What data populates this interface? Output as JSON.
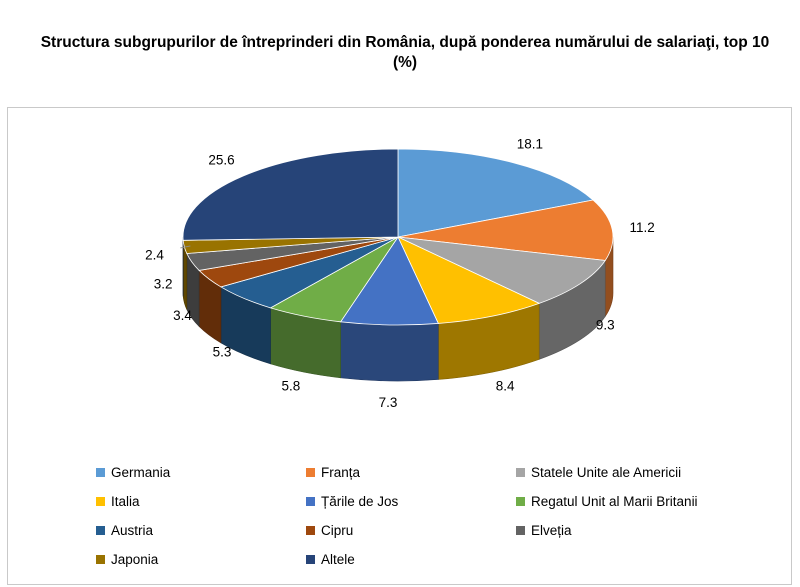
{
  "title_lines": [
    "Structura subgrupurilor de întreprinderi din România, după ponderea numărului de salariaţi, top 10",
    "(%)"
  ],
  "chart_data": {
    "type": "pie",
    "style": "3d",
    "title": "Structura subgrupurilor de întreprinderi din România, după ponderea numărului de salariaţi, top 10 (%)",
    "legend_position": "bottom",
    "categories": [
      "Germania",
      "Franța",
      "Statele Unite ale Americii",
      "Italia",
      "Țările de Jos",
      "Regatul Unit al Marii Britanii",
      "Austria",
      "Cipru",
      "Elveția",
      "Japonia",
      "Altele"
    ],
    "values": [
      18.1,
      11.2,
      9.3,
      8.4,
      7.3,
      5.8,
      5.3,
      3.4,
      3.2,
      2.4,
      25.6
    ],
    "data_labels": [
      "18.1",
      "11.2",
      "9.3",
      "8.4",
      "7.3",
      "5.8",
      "5.3",
      "3.4",
      "3.2",
      "2.4",
      "25.6"
    ],
    "colors": [
      "#5b9bd5",
      "#ed7d31",
      "#a5a5a5",
      "#ffc000",
      "#4472c4",
      "#70ad47",
      "#255e91",
      "#9e480e",
      "#636363",
      "#997300",
      "#264478"
    ]
  }
}
